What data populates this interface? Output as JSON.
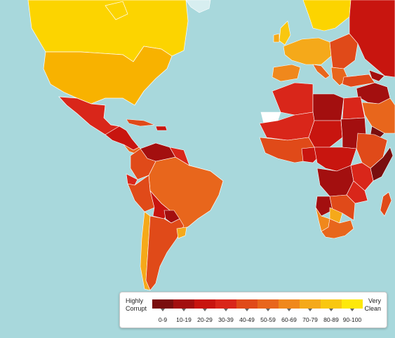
{
  "map": {
    "ocean_color": "#a8d8dc",
    "border_color": "#ffffff"
  },
  "legend": {
    "left_label_line1": "Highly",
    "left_label_line2": "Corrupt",
    "right_label_line1": "Very",
    "right_label_line2": "Clean",
    "ranges": [
      "0-9",
      "10-19",
      "20-29",
      "30-39",
      "40-49",
      "50-59",
      "60-69",
      "70-79",
      "80-89",
      "90-100"
    ],
    "colors": [
      "#7a0e0e",
      "#a30f0f",
      "#c8150f",
      "#d9261a",
      "#e04a19",
      "#e8661c",
      "#f0881c",
      "#f5a91a",
      "#f9c70f",
      "#fde80a"
    ]
  }
}
